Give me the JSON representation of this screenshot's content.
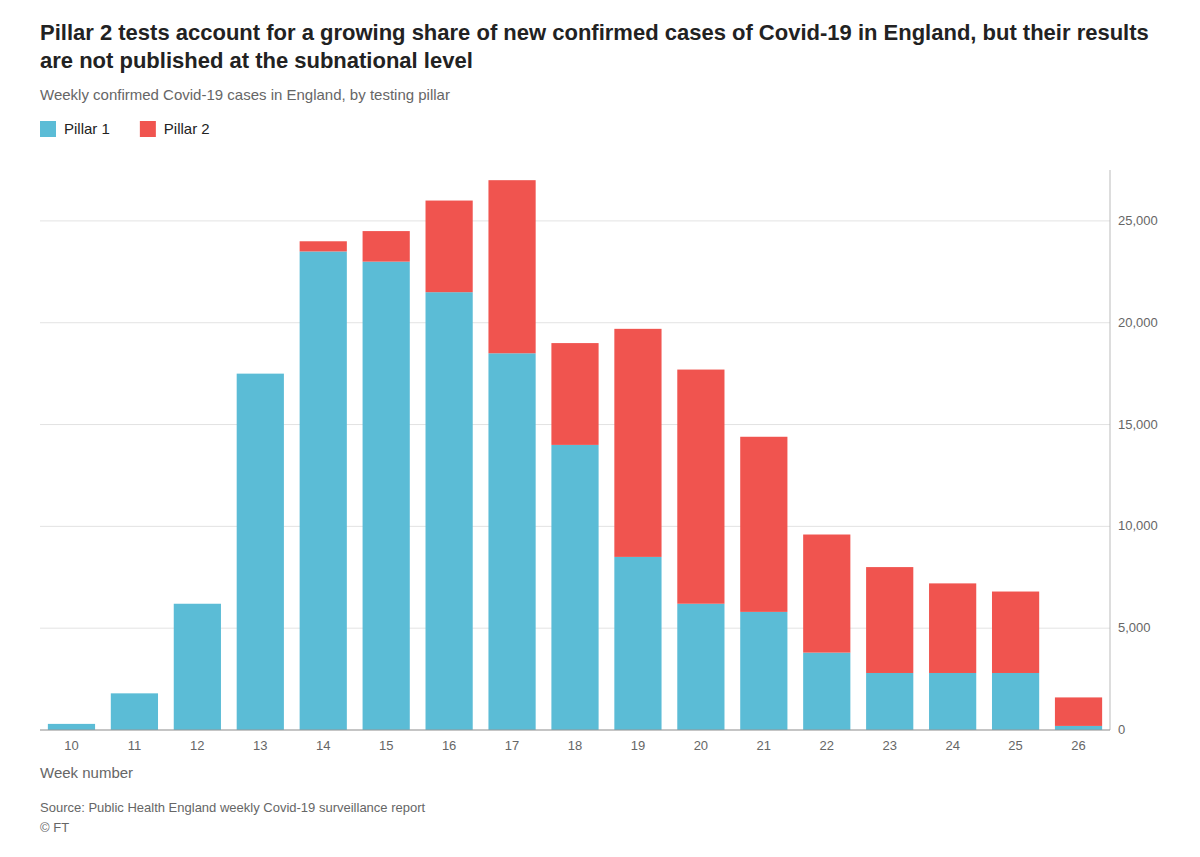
{
  "chart_data": {
    "type": "bar",
    "stacked": true,
    "title": "Pillar 2 tests account for a growing share of new confirmed cases of Covid-19 in England, but their results are not published at the subnational level",
    "subtitle": "Weekly confirmed Covid-19 cases in England, by testing pillar",
    "xlabel": "Week number",
    "annotations": [
      "Source: Public Health England weekly Covid-19 surveillance report",
      "© FT"
    ],
    "categories": [
      "10",
      "11",
      "12",
      "13",
      "14",
      "15",
      "16",
      "17",
      "18",
      "19",
      "20",
      "21",
      "22",
      "23",
      "24",
      "25",
      "26"
    ],
    "series": [
      {
        "name": "Pillar 1",
        "color": "#5bbcd6",
        "values": [
          300,
          1800,
          6200,
          17500,
          23500,
          23000,
          21500,
          18500,
          14000,
          8500,
          6200,
          5800,
          3800,
          2800,
          2800,
          2800,
          200
        ]
      },
      {
        "name": "Pillar 2",
        "color": "#f0544f",
        "values": [
          0,
          0,
          0,
          0,
          500,
          1500,
          4500,
          8500,
          5000,
          11200,
          11500,
          8600,
          5800,
          5200,
          4400,
          4000,
          1400
        ]
      }
    ],
    "ylim": [
      0,
      27500
    ],
    "yticks": [
      0,
      {
        "value": 5000,
        "label": "5,000"
      },
      {
        "value": 10000,
        "label": "10,000"
      },
      {
        "value": 15000,
        "label": "15,000"
      },
      {
        "value": 20000,
        "label": "20,000"
      },
      {
        "value": 25000,
        "label": "25,000"
      }
    ],
    "grid": true,
    "legend": "top-left"
  }
}
